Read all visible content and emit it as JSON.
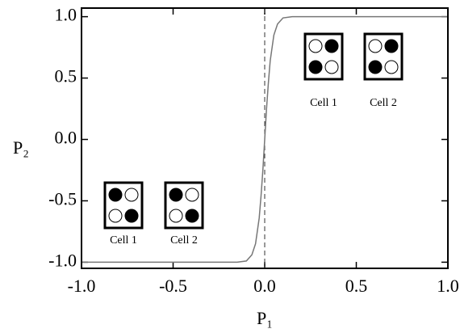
{
  "chart_data": {
    "type": "line",
    "xlabel": "P₁",
    "ylabel": "P₂",
    "x": [
      -1,
      -0.5,
      -0.3,
      -0.2,
      -0.15,
      -0.1,
      -0.07,
      -0.05,
      -0.03,
      -0.02,
      -0.01,
      0,
      0.01,
      0.02,
      0.03,
      0.05,
      0.07,
      0.1,
      0.15,
      0.2,
      0.3,
      0.5,
      1
    ],
    "values": [
      -1,
      -1,
      -1,
      -1,
      -1,
      -0.99,
      -0.94,
      -0.85,
      -0.64,
      -0.46,
      -0.25,
      0,
      0.25,
      0.46,
      0.64,
      0.85,
      0.94,
      0.99,
      1,
      1,
      1,
      1,
      1
    ],
    "color": "#777777",
    "vline": 0,
    "xlim": [
      -1,
      1
    ],
    "ylim": [
      -1.05,
      1.07
    ],
    "xticks": [
      {
        "value": -1,
        "label": "-1.0"
      },
      {
        "value": -0.5,
        "label": "-0.5"
      },
      {
        "value": 0,
        "label": "0.0"
      },
      {
        "value": 0.5,
        "label": "0.5"
      },
      {
        "value": 1,
        "label": "1.0"
      }
    ],
    "yticks": [
      {
        "value": -1,
        "label": "-1.0"
      },
      {
        "value": -0.5,
        "label": "-0.5"
      },
      {
        "value": 0,
        "label": "0.0"
      },
      {
        "value": 0.5,
        "label": "0.5"
      },
      {
        "value": 1,
        "label": "1.0"
      }
    ],
    "annotations": [
      [
        "Cell  1",
        "Cell  2"
      ],
      [
        "Cell  1",
        "Cell  2"
      ]
    ]
  }
}
